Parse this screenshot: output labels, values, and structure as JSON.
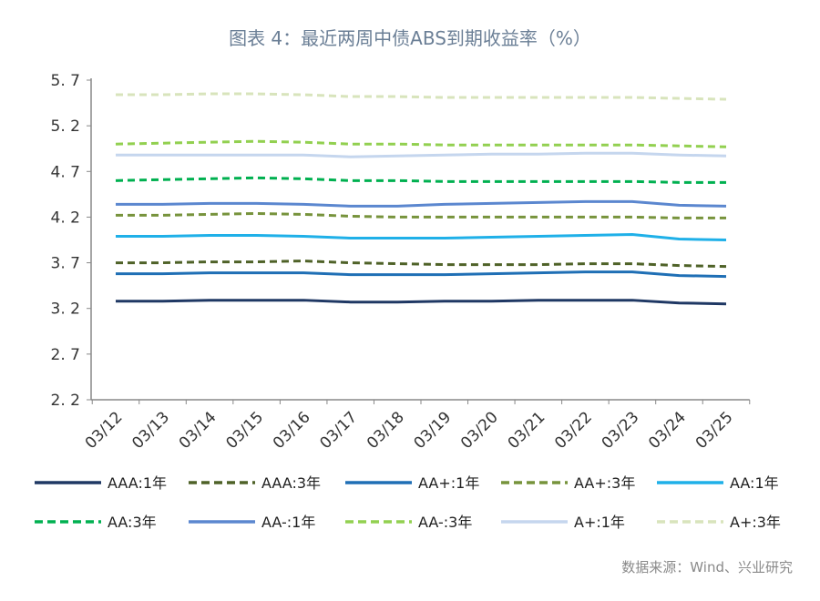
{
  "chart_data": {
    "type": "line",
    "title": "图表 4：最近两周中债ABS到期收益率（%）",
    "source": "数据来源：Wind、兴业研究",
    "xlabel": "",
    "ylabel": "",
    "categories": [
      "03/12",
      "03/13",
      "03/14",
      "03/15",
      "03/16",
      "03/17",
      "03/18",
      "03/19",
      "03/20",
      "03/21",
      "03/22",
      "03/23",
      "03/24",
      "03/25"
    ],
    "ylim": [
      2.2,
      5.7
    ],
    "yticks": [
      "2. 2",
      "2. 7",
      "3. 2",
      "3. 7",
      "4. 2",
      "4. 7",
      "5. 2",
      "5. 7"
    ],
    "grid": false,
    "legend_position": "bottom",
    "series": [
      {
        "name": "AAA:1年",
        "color": "#1f3864",
        "dash": false,
        "values": [
          3.28,
          3.28,
          3.29,
          3.29,
          3.29,
          3.27,
          3.27,
          3.28,
          3.28,
          3.29,
          3.29,
          3.29,
          3.26,
          3.25
        ]
      },
      {
        "name": "AAA:3年",
        "color": "#4f6228",
        "dash": true,
        "values": [
          3.7,
          3.7,
          3.71,
          3.71,
          3.72,
          3.7,
          3.69,
          3.68,
          3.68,
          3.68,
          3.69,
          3.69,
          3.67,
          3.66
        ]
      },
      {
        "name": "AA+:1年",
        "color": "#1f6fb5",
        "dash": false,
        "values": [
          3.58,
          3.58,
          3.59,
          3.59,
          3.59,
          3.57,
          3.57,
          3.57,
          3.58,
          3.59,
          3.6,
          3.6,
          3.56,
          3.55
        ]
      },
      {
        "name": "AA+:3年",
        "color": "#77933c",
        "dash": true,
        "values": [
          4.22,
          4.22,
          4.23,
          4.24,
          4.23,
          4.21,
          4.2,
          4.2,
          4.2,
          4.2,
          4.2,
          4.2,
          4.19,
          4.19
        ]
      },
      {
        "name": "AA:1年",
        "color": "#1fb0e8",
        "dash": false,
        "values": [
          3.99,
          3.99,
          4.0,
          4.0,
          3.99,
          3.97,
          3.97,
          3.97,
          3.98,
          3.99,
          4.0,
          4.01,
          3.96,
          3.95
        ]
      },
      {
        "name": "AA:3年",
        "color": "#00b050",
        "dash": true,
        "values": [
          4.6,
          4.61,
          4.62,
          4.63,
          4.62,
          4.6,
          4.6,
          4.59,
          4.59,
          4.59,
          4.59,
          4.59,
          4.58,
          4.58
        ]
      },
      {
        "name": "AA-:1年",
        "color": "#5b87cf",
        "dash": false,
        "values": [
          4.34,
          4.34,
          4.35,
          4.35,
          4.34,
          4.32,
          4.32,
          4.34,
          4.35,
          4.36,
          4.37,
          4.37,
          4.33,
          4.32
        ]
      },
      {
        "name": "AA-:3年",
        "color": "#92d050",
        "dash": true,
        "values": [
          5.0,
          5.01,
          5.02,
          5.03,
          5.02,
          5.0,
          5.0,
          4.99,
          4.99,
          4.99,
          4.99,
          4.99,
          4.98,
          4.97
        ]
      },
      {
        "name": "A+:1年",
        "color": "#c5d6ee",
        "dash": false,
        "values": [
          4.88,
          4.88,
          4.88,
          4.88,
          4.88,
          4.86,
          4.87,
          4.88,
          4.89,
          4.89,
          4.9,
          4.9,
          4.88,
          4.87
        ]
      },
      {
        "name": "A+:3年",
        "color": "#d8e4bc",
        "dash": true,
        "values": [
          5.54,
          5.54,
          5.55,
          5.55,
          5.54,
          5.52,
          5.52,
          5.51,
          5.51,
          5.51,
          5.51,
          5.51,
          5.5,
          5.49
        ]
      }
    ]
  }
}
